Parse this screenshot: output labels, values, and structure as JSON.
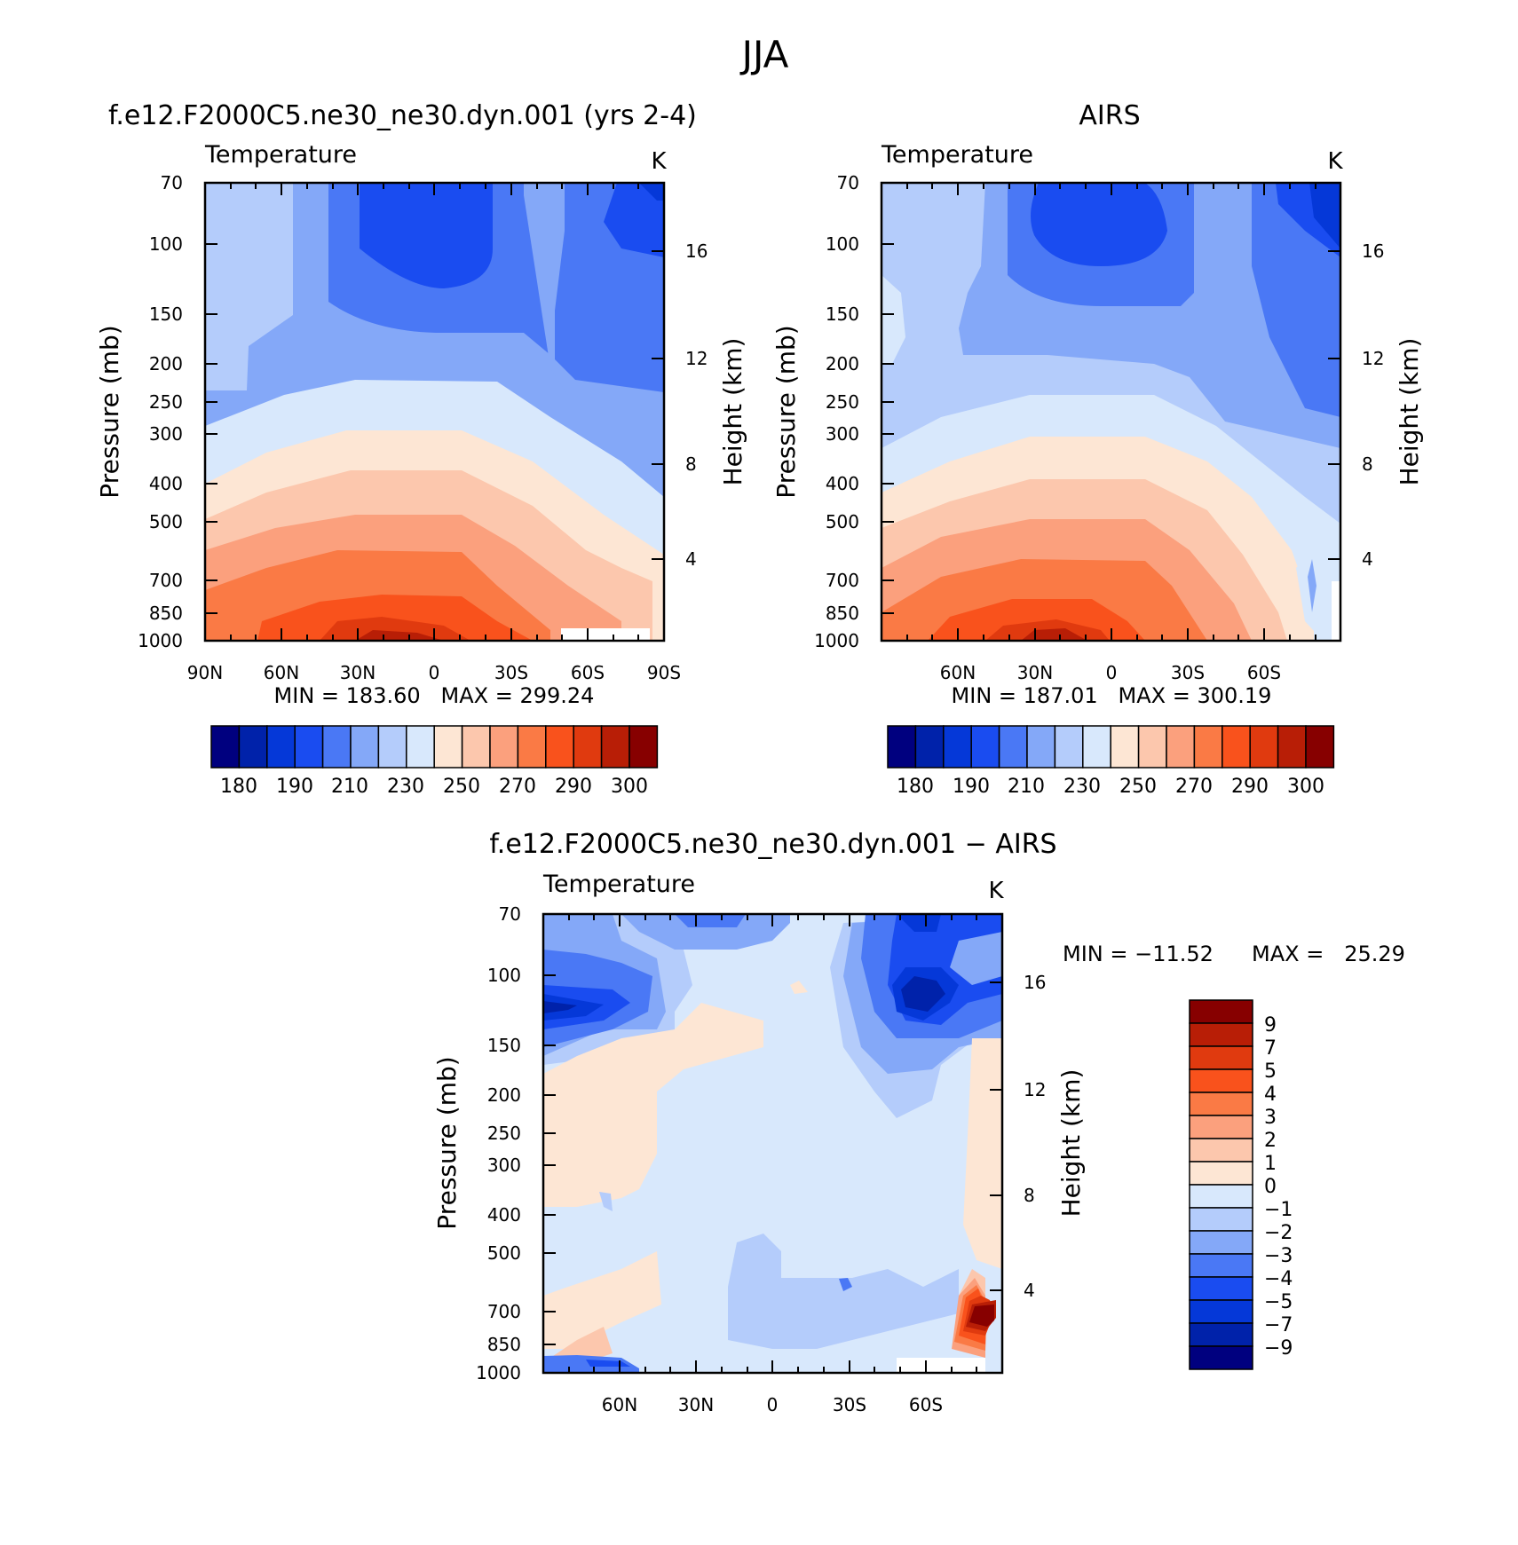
{
  "title": "JJA",
  "chart_data": [
    {
      "type": "heatmap",
      "panel_title": "f.e12.F2000C5.ne30_ne30.dyn.001 (yrs 2-4)",
      "variable": "Temperature",
      "units": "K",
      "ylabel": "Pressure (mb)",
      "ylabel_right": "Height (km)",
      "x_ticks": [
        "90N",
        "60N",
        "30N",
        "0",
        "30S",
        "60S",
        "90S"
      ],
      "y_ticks": [
        "70",
        "100",
        "150",
        "200",
        "250",
        "300",
        "400",
        "500",
        "700",
        "850",
        "1000"
      ],
      "y_ticks_right": [
        "16",
        "12",
        "8",
        "4"
      ],
      "stats": "MIN = 183.60   MAX = 299.24",
      "min": 183.6,
      "max": 299.24,
      "colorbar_labels": [
        "180",
        "190",
        "210",
        "230",
        "250",
        "270",
        "290",
        "300"
      ]
    },
    {
      "type": "heatmap",
      "panel_title": "AIRS",
      "variable": "Temperature",
      "units": "K",
      "ylabel": "Pressure (mb)",
      "ylabel_right": "Height (km)",
      "x_ticks": [
        "60N",
        "30N",
        "0",
        "30S",
        "60S"
      ],
      "y_ticks": [
        "70",
        "100",
        "150",
        "200",
        "250",
        "300",
        "400",
        "500",
        "700",
        "850",
        "1000"
      ],
      "y_ticks_right": [
        "16",
        "12",
        "8",
        "4"
      ],
      "stats": "MIN = 187.01   MAX = 300.19",
      "min": 187.01,
      "max": 300.19,
      "colorbar_labels": [
        "180",
        "190",
        "210",
        "230",
        "250",
        "270",
        "290",
        "300"
      ]
    },
    {
      "type": "heatmap",
      "panel_title": "f.e12.F2000C5.ne30_ne30.dyn.001 − AIRS",
      "variable": "Temperature",
      "units": "K",
      "ylabel": "Pressure (mb)",
      "ylabel_right": "Height (km)",
      "x_ticks": [
        "60N",
        "30N",
        "0",
        "30S",
        "60S"
      ],
      "y_ticks": [
        "70",
        "100",
        "150",
        "200",
        "250",
        "300",
        "400",
        "500",
        "700",
        "850",
        "1000"
      ],
      "y_ticks_right": [
        "16",
        "12",
        "8",
        "4"
      ],
      "stats_min": "MIN = −11.52",
      "stats_max": "MAX =   25.29",
      "min": -11.52,
      "max": 25.29,
      "colorbar_labels": [
        "9",
        "7",
        "5",
        "4",
        "3",
        "2",
        "1",
        "0",
        "−1",
        "−2",
        "−3",
        "−4",
        "−5",
        "−7",
        "−9"
      ]
    }
  ],
  "colors": {
    "abs_palette": [
      "#00007f",
      "#0022aa",
      "#0538d8",
      "#1a4cf0",
      "#4a78f5",
      "#84a8f8",
      "#b4ccfb",
      "#d8e8fc",
      "#fde6d4",
      "#fcc7ad",
      "#fba07d",
      "#fa7a45",
      "#f9521c",
      "#e03a0f",
      "#b81e06",
      "#870000"
    ],
    "diff_palette": [
      "#870000",
      "#b81e06",
      "#e03a0f",
      "#f9521c",
      "#fa7a45",
      "#fba07d",
      "#fcc7ad",
      "#fde6d4",
      "#d8e8fc",
      "#b4ccfb",
      "#84a8f8",
      "#4a78f5",
      "#1a4cf0",
      "#0538d8",
      "#0022aa",
      "#00007f"
    ]
  }
}
